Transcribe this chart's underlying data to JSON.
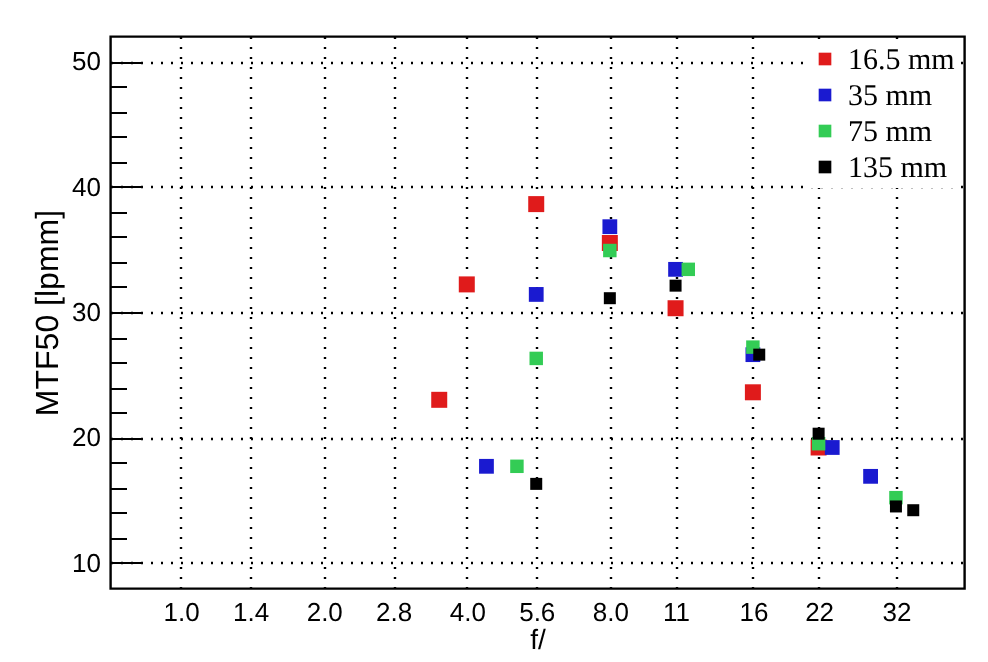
{
  "chart_data": {
    "type": "scatter",
    "xlabel": "f/",
    "ylabel": "MTF50 [lpmm]",
    "log": "x",
    "grid": true,
    "legend": "top right",
    "marker": "square",
    "xlim": [
      0.71,
      44.5
    ],
    "ylim": [
      8,
      52
    ],
    "xticks": [
      {
        "value": 1,
        "label": "1.0"
      },
      1.4,
      {
        "value": 2,
        "label": "2.0"
      },
      2.8,
      {
        "value": 4,
        "label": "4.0"
      },
      5.6,
      {
        "value": 8,
        "label": "8.0"
      },
      11,
      16,
      22,
      32
    ],
    "yticks": [
      10,
      {
        "value": 12,
        "label": null
      },
      {
        "value": 14,
        "label": null
      },
      {
        "value": 16,
        "label": null
      },
      {
        "value": 18,
        "label": null
      },
      20,
      {
        "value": 22,
        "label": null
      },
      {
        "value": 24,
        "label": null
      },
      {
        "value": 26,
        "label": null
      },
      {
        "value": 28,
        "label": null
      },
      30,
      {
        "value": 32,
        "label": null
      },
      {
        "value": 34,
        "label": null
      },
      {
        "value": 36,
        "label": null
      },
      {
        "value": 38,
        "label": null
      },
      40,
      {
        "value": 42,
        "label": null
      },
      {
        "value": 44,
        "label": null
      },
      {
        "value": 46,
        "label": null
      },
      {
        "value": 48,
        "label": null
      },
      50
    ],
    "series": [
      {
        "name": "16.5 mm",
        "color": "#e01b1b",
        "x": [
          3.5,
          4,
          5.6,
          8,
          11,
          16,
          22
        ],
        "values": [
          23.0,
          32.2,
          38.6,
          35.5,
          30.3,
          23.6,
          19.2
        ]
      },
      {
        "name": "35 mm",
        "color": "#1a1ad0",
        "x": [
          4.4,
          5.6,
          8,
          11,
          16,
          23.5,
          28.3
        ],
        "values": [
          17.7,
          31.4,
          36.8,
          33.4,
          26.6,
          19.2,
          16.9
        ]
      },
      {
        "name": "75 mm",
        "color": "#33cc55",
        "x": [
          5.1,
          5.6,
          8,
          11.7,
          16,
          22,
          32
        ],
        "values": [
          17.7,
          26.3,
          34.9,
          33.4,
          27.2,
          19.5,
          15.2
        ]
      },
      {
        "name": "135 mm",
        "color": "#000000",
        "x": [
          5.6,
          8,
          11,
          16.5,
          22,
          32,
          34.8
        ],
        "values": [
          16.3,
          31.1,
          32.1,
          26.6,
          20.3,
          14.5,
          14.2
        ]
      }
    ]
  }
}
